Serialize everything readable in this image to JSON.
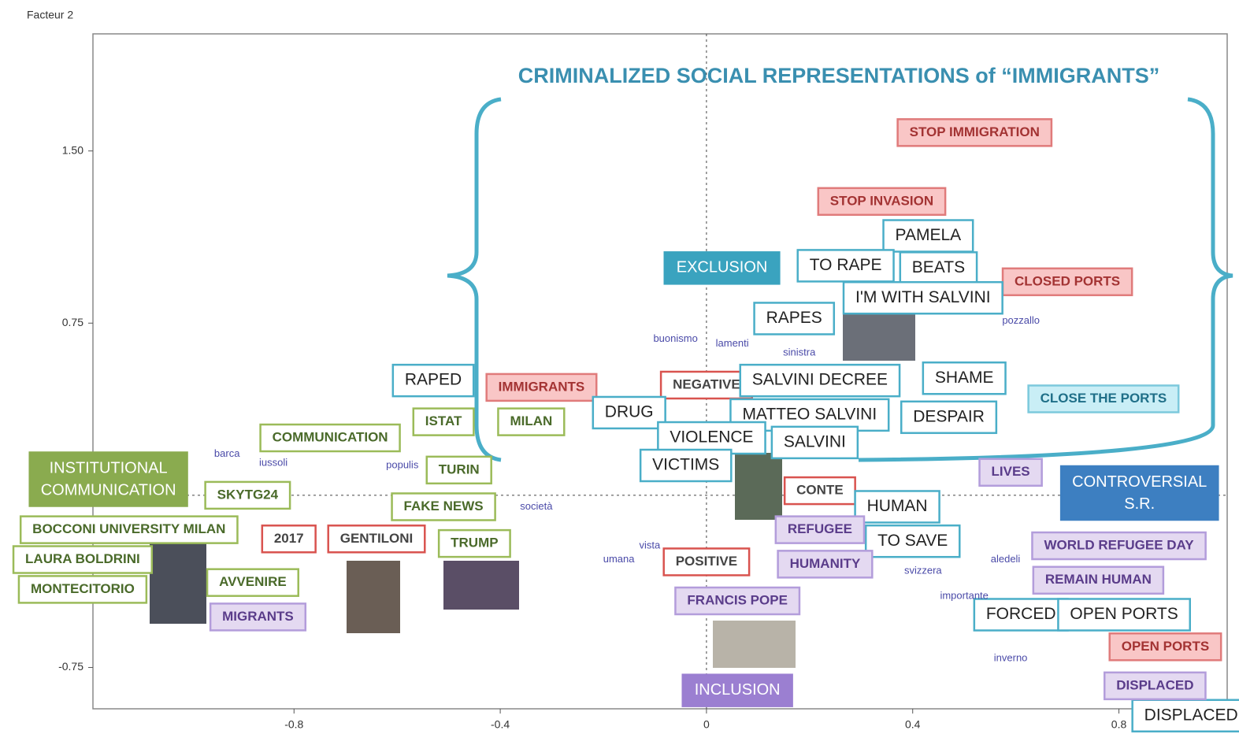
{
  "chart_data": {
    "type": "scatter",
    "title": "CRIMINALIZED SOCIAL REPRESENTATIONS of “IMMIGRANTS”",
    "y_label": "Facteur 2",
    "xlim": [
      -1.19,
      1.01
    ],
    "ylim": [
      -0.93,
      2.01
    ],
    "xticks": [
      -0.8,
      -0.4,
      0,
      0.4,
      0.8
    ],
    "yticks": [
      {
        "value": 1.5,
        "label": "1.50"
      },
      0.75,
      -0.75
    ],
    "series": [
      {
        "color": "#e07b7b",
        "fill": "#f9c6c6",
        "text_color": "#a33333",
        "labels": [
          "STOP IMMIGRATION",
          "STOP INVASION",
          "CLOSED PORTS",
          "IMMIGRANTS",
          "OPEN PORTS"
        ],
        "x": [
          0.52,
          0.34,
          0.7,
          -0.32,
          0.89
        ],
        "y": [
          1.58,
          1.28,
          0.93,
          0.47,
          -0.66
        ]
      },
      {
        "color": "#d9534f",
        "fill": "#ffffff",
        "text_color": "#444444",
        "labels": [
          "NEGATIVE",
          "2017",
          "GENTILONI",
          "POSITIVE",
          "CONTE"
        ],
        "x": [
          0.0,
          -0.81,
          -0.64,
          0.0,
          0.22
        ],
        "y": [
          0.48,
          -0.19,
          -0.19,
          -0.29,
          0.02
        ]
      },
      {
        "color": "#4aaec8",
        "fill": "#ffffff",
        "text_color": "#222222",
        "labels": [
          "PAMELA",
          "TO RAPE",
          "BEATS",
          "I'M WITH SALVINI",
          "RAPES",
          "RAPED",
          "DRUG",
          "SALVINI DECREE",
          "SHAME",
          "MATTEO SALVINI",
          "DESPAIR",
          "VIOLENCE",
          "SALVINI",
          "VICTIMS",
          "HUMAN",
          "TO SAVE",
          "FORCED",
          "OPEN PORTS",
          "DISPLACED"
        ],
        "x": [
          0.43,
          0.27,
          0.45,
          0.42,
          0.17,
          -0.53,
          -0.15,
          0.22,
          0.5,
          0.2,
          0.47,
          0.01,
          0.21,
          -0.04,
          0.37,
          0.4,
          0.61,
          0.81,
          0.94
        ],
        "y": [
          1.13,
          1.0,
          0.99,
          0.86,
          0.77,
          0.5,
          0.36,
          0.5,
          0.51,
          0.35,
          0.34,
          0.25,
          0.23,
          0.13,
          -0.05,
          -0.2,
          -0.52,
          -0.52,
          -0.96
        ]
      },
      {
        "color": "#3aa3bf",
        "fill": "#3aa3bf",
        "text_color": "#ffffff",
        "labels": [
          "EXCLUSION"
        ],
        "x": [
          0.03
        ],
        "y": [
          0.99
        ]
      },
      {
        "color": "#7cc9dc",
        "fill": "#c9eef6",
        "text_color": "#1f6f88",
        "labels": [
          "CLOSE THE PORTS"
        ],
        "x": [
          0.77
        ],
        "y": [
          0.42
        ]
      },
      {
        "color": "#9bbb59",
        "fill": "#ffffff",
        "text_color": "#4a6a2a",
        "labels": [
          "COMMUNICATION",
          "ISTAT",
          "MILAN",
          "TURIN",
          "SKYTG24",
          "FAKE NEWS",
          "BOCCONI UNIVERSITY MILAN",
          "TRUMP",
          "LAURA BOLDRINI",
          "AVVENIRE",
          "MONTECITORIO"
        ],
        "x": [
          -0.73,
          -0.51,
          -0.34,
          -0.48,
          -0.89,
          -0.51,
          -1.12,
          -0.45,
          -1.21,
          -0.88,
          -1.21
        ],
        "y": [
          0.25,
          0.32,
          0.32,
          0.11,
          0.0,
          -0.05,
          -0.15,
          -0.21,
          -0.28,
          -0.38,
          -0.41
        ]
      },
      {
        "color": "#8aab4f",
        "fill": "#8aab4f",
        "text_color": "#ffffff",
        "labels": [
          "INSTITUTIONAL COMMUNICATION"
        ],
        "x": [
          -1.16
        ],
        "y": [
          0.07
        ]
      },
      {
        "color": "#b39ddb",
        "fill": "#e4d9f1",
        "text_color": "#5a3c8a",
        "labels": [
          "LIVES",
          "REFUGEE",
          "HUMANITY",
          "FRANCIS POPE",
          "MIGRANTS",
          "WORLD REFUGEE DAY",
          "REMAIN HUMAN",
          "DISPLACED"
        ],
        "x": [
          0.59,
          0.22,
          0.23,
          0.06,
          -0.87,
          0.8,
          0.76,
          0.87
        ],
        "y": [
          0.1,
          -0.15,
          -0.3,
          -0.46,
          -0.53,
          -0.22,
          -0.37,
          -0.83
        ]
      },
      {
        "color": "#9b7fd1",
        "fill": "#9b7fd1",
        "text_color": "#ffffff",
        "labels": [
          "INCLUSION"
        ],
        "x": [
          0.06
        ],
        "y": [
          -0.85
        ]
      },
      {
        "color": "#3d7fc1",
        "fill": "#3d7fc1",
        "text_color": "#ffffff",
        "labels": [
          "CONTROVERSIAL S.R."
        ],
        "x": [
          0.84
        ],
        "y": [
          0.01
        ]
      },
      {
        "color": "#4a4aa8",
        "text_color": "#4a4aa8",
        "labels": [
          "buonismo",
          "lamenti",
          "sinistra",
          "pozzallo",
          "inverno",
          "iussoli",
          "barca",
          "populis",
          "società",
          "umana",
          "vista",
          "svizzera",
          "aledeli",
          "importante"
        ],
        "x": [
          -0.06,
          0.05,
          0.18,
          0.61,
          0.59,
          -0.84,
          -0.93,
          -0.59,
          -0.33,
          -0.17,
          -0.11,
          0.42,
          0.58,
          0.5
        ],
        "y": [
          0.68,
          0.66,
          0.62,
          0.76,
          -0.71,
          0.14,
          0.18,
          0.13,
          -0.05,
          -0.28,
          -0.22,
          -0.33,
          -0.28,
          -0.44
        ]
      }
    ]
  }
}
